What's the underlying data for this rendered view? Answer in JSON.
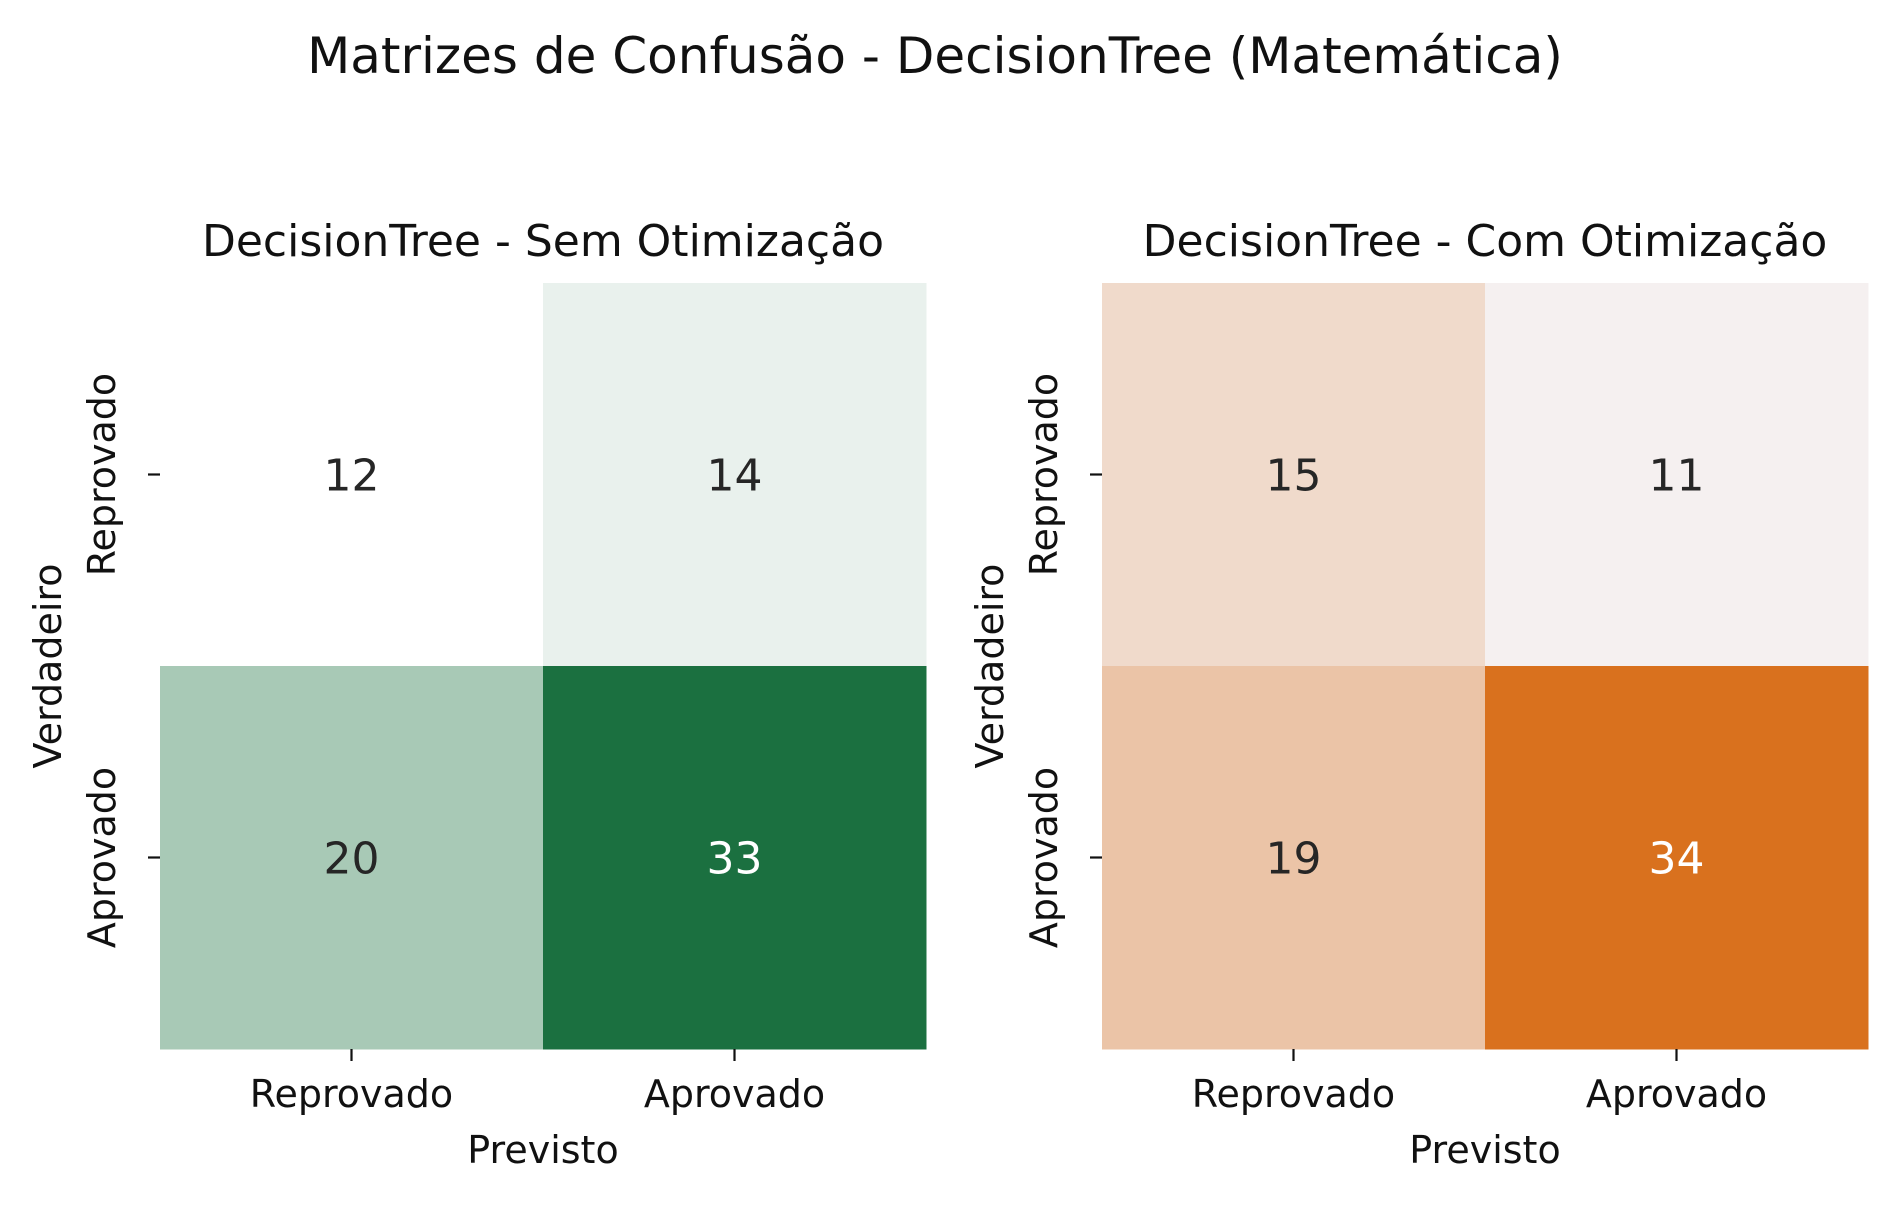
{
  "suptitle": "Matrizes de Confusão - DecisionTree (Matemática)",
  "chart_data": [
    {
      "type": "heatmap",
      "title": "DecisionTree - Sem Otimização",
      "xlabel": "Previsto",
      "ylabel": "Verdadeiro",
      "x_categories": [
        "Reprovado",
        "Aprovado"
      ],
      "y_categories": [
        "Reprovado",
        "Aprovado"
      ],
      "values": [
        [
          12,
          14
        ],
        [
          20,
          33
        ]
      ],
      "colormap": "Greens",
      "colors": {
        "low": "#ffffff",
        "high": "#1b7040"
      },
      "colorbar": false
    },
    {
      "type": "heatmap",
      "title": "DecisionTree - Com Otimização",
      "xlabel": "Previsto",
      "ylabel": "Verdadeiro",
      "x_categories": [
        "Reprovado",
        "Aprovado"
      ],
      "y_categories": [
        "Reprovado",
        "Aprovado"
      ],
      "values": [
        [
          15,
          11
        ],
        [
          19,
          34
        ]
      ],
      "colormap": "Oranges",
      "colors": {
        "low": "#f5f0f0",
        "high": "#d9711e"
      },
      "colorbar": false
    }
  ]
}
